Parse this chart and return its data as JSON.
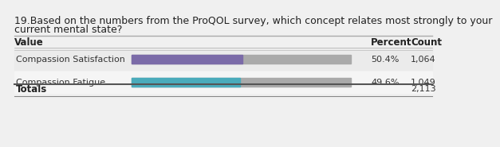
{
  "title_line1": "19.Based on the numbers from the ProQOL survey, which concept relates most strongly to your",
  "title_line2": "current mental state?",
  "header_value": "Value",
  "header_percent": "Percent",
  "header_count": "Count",
  "rows": [
    {
      "label": "Compassion Satisfaction",
      "percent": 50.4,
      "percent_str": "50.4%",
      "count_str": "1,064",
      "bar_color": "#7B6BA8",
      "bg_color": "#EBEBEB"
    },
    {
      "label": "Compassion Fatigue",
      "percent": 49.6,
      "percent_str": "49.6%",
      "count_str": "1,049",
      "bar_color": "#4AABBB",
      "bg_color": "#F5F5F5"
    }
  ],
  "totals_label": "Totals",
  "totals_count": "2,113",
  "bar_gray": "#AAAAAA",
  "fig_bg": "#F0F0F0",
  "title_fontsize": 9,
  "label_fontsize": 8,
  "header_fontsize": 8.5
}
